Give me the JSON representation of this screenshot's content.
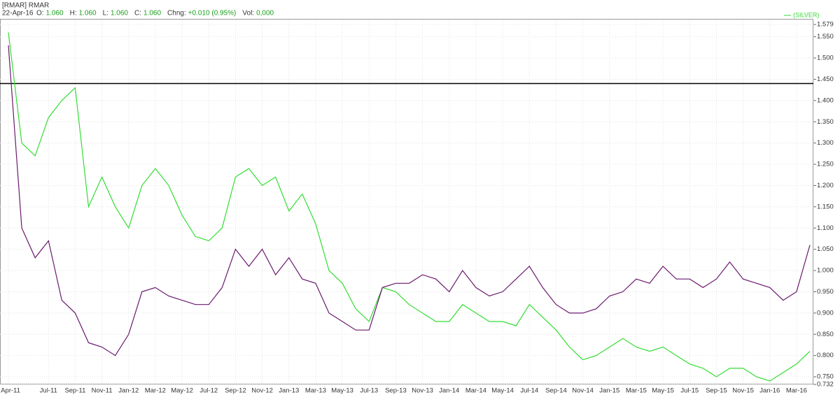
{
  "chart_data": {
    "type": "line",
    "header": {
      "symbol": "[RMAR] RMAR",
      "date": "22-Apr-16",
      "fields": [
        {
          "label": "O:",
          "value": "1.060"
        },
        {
          "label": "H:",
          "value": "1.060"
        },
        {
          "label": "L:",
          "value": "1.060"
        },
        {
          "label": "C:",
          "value": "1.060"
        },
        {
          "label": "Chng:",
          "value": "+0.010 (0.95%)"
        },
        {
          "label": "Vol:",
          "value": "0,000"
        }
      ],
      "value_color": "#1a9e1a"
    },
    "categories": [
      "Apr-11",
      null,
      null,
      "Jul-11",
      null,
      "Sep-11",
      null,
      "Nov-11",
      null,
      "Jan-12",
      null,
      "Mar-12",
      null,
      "May-12",
      null,
      "Jul-12",
      null,
      "Sep-12",
      null,
      "Nov-12",
      null,
      "Jan-13",
      null,
      "Mar-13",
      null,
      "May-13",
      null,
      "Jul-13",
      null,
      "Sep-13",
      null,
      "Nov-13",
      null,
      "Jan-14",
      null,
      "Mar-14",
      null,
      "May-14",
      null,
      "Jul-14",
      null,
      "Sep-14",
      null,
      "Nov-14",
      null,
      "Jan-15",
      null,
      "Mar-15",
      null,
      "May-15",
      null,
      "Jul-15",
      null,
      "Sep-15",
      null,
      "Nov-15",
      null,
      "Jan-16",
      null,
      "Mar-16",
      null
    ],
    "series": [
      {
        "color": "#6a1a6e",
        "values": [
          1.53,
          1.1,
          1.03,
          1.07,
          0.93,
          0.9,
          0.83,
          0.82,
          0.8,
          0.85,
          0.95,
          0.96,
          0.94,
          0.93,
          0.92,
          0.92,
          0.96,
          1.05,
          1.01,
          1.05,
          0.99,
          1.03,
          0.98,
          0.97,
          0.9,
          0.88,
          0.86,
          0.86,
          0.96,
          0.97,
          0.97,
          0.99,
          0.98,
          0.95,
          1.0,
          0.96,
          0.94,
          0.95,
          0.98,
          1.01,
          0.96,
          0.92,
          0.9,
          0.9,
          0.91,
          0.94,
          0.95,
          0.98,
          0.97,
          1.01,
          0.98,
          0.98,
          0.96,
          0.98,
          1.02,
          0.98,
          0.97,
          0.96,
          0.93,
          0.95,
          1.06
        ]
      },
      {
        "name": "(SILVER)",
        "color": "#33dd33",
        "values": [
          1.56,
          1.3,
          1.27,
          1.36,
          1.4,
          1.43,
          1.15,
          1.22,
          1.15,
          1.1,
          1.2,
          1.24,
          1.2,
          1.13,
          1.08,
          1.07,
          1.1,
          1.22,
          1.24,
          1.2,
          1.22,
          1.14,
          1.18,
          1.11,
          1.0,
          0.97,
          0.91,
          0.88,
          0.96,
          0.95,
          0.92,
          0.9,
          0.88,
          0.88,
          0.92,
          0.9,
          0.88,
          0.88,
          0.87,
          0.92,
          0.89,
          0.86,
          0.82,
          0.79,
          0.8,
          0.82,
          0.84,
          0.82,
          0.81,
          0.82,
          0.8,
          0.78,
          0.77,
          0.75,
          0.77,
          0.77,
          0.75,
          0.74,
          0.76,
          0.78,
          0.81
        ]
      }
    ],
    "reference_line": 1.44,
    "ylim": [
      0.732,
      1.579
    ],
    "yticks": [
      1.579,
      {
        "value": 1.55,
        "label": "1.550"
      },
      {
        "value": 1.5,
        "label": "1.500"
      },
      {
        "value": 1.45,
        "label": "1.450"
      },
      {
        "value": 1.4,
        "label": "1.400"
      },
      {
        "value": 1.35,
        "label": "1.350"
      },
      {
        "value": 1.3,
        "label": "1.300"
      },
      {
        "value": 1.25,
        "label": "1.250"
      },
      {
        "value": 1.2,
        "label": "1.200"
      },
      {
        "value": 1.15,
        "label": "1.150"
      },
      {
        "value": 1.1,
        "label": "1.100"
      },
      {
        "value": 1.05,
        "label": "1.050"
      },
      {
        "value": 1.0,
        "label": "1.000"
      },
      {
        "value": 0.95,
        "label": "0.950"
      },
      {
        "value": 0.9,
        "label": "0.900"
      },
      {
        "value": 0.85,
        "label": "0.850"
      },
      {
        "value": 0.8,
        "label": "0.800"
      },
      {
        "value": 0.75,
        "label": "0.750"
      },
      0.732
    ],
    "grid": true,
    "legend": "top-right"
  }
}
